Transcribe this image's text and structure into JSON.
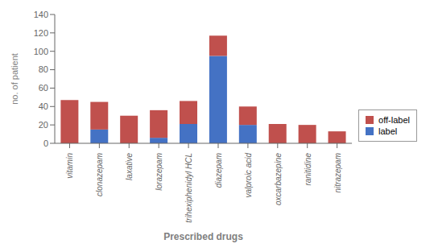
{
  "chart_data": {
    "type": "bar",
    "stacked": true,
    "categories": [
      "vitamin",
      "clonazepam",
      "laxative",
      "lorazepam",
      "trihexiphenidyl HCL",
      "diazepam",
      "valproic acid",
      "oxcarbazepine",
      "ranitidine",
      "nitrazepam"
    ],
    "series": [
      {
        "name": "label",
        "color": "#4472C4",
        "values": [
          0,
          15,
          0,
          6,
          21,
          95,
          20,
          0,
          0,
          0
        ]
      },
      {
        "name": "off-label",
        "color": "#C0504D",
        "values": [
          47,
          30,
          30,
          30,
          25,
          22,
          20,
          21,
          20,
          13
        ]
      }
    ],
    "xlabel": "Prescribed drugs",
    "ylabel": "no. of patient",
    "ylim": [
      0,
      140
    ],
    "yticks": [
      0,
      20,
      40,
      60,
      80,
      100,
      120,
      140
    ],
    "grid": false,
    "legend": "right"
  }
}
